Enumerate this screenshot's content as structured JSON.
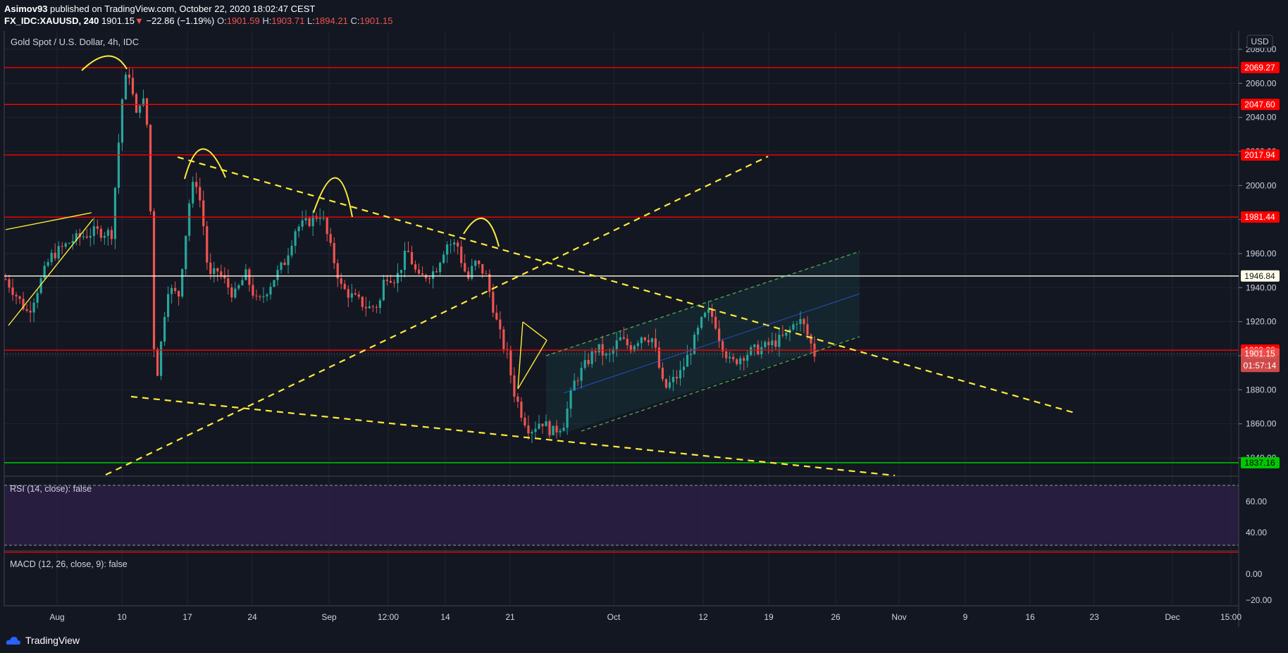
{
  "header": {
    "publisher": "Asimov93",
    "published_text": "published on TradingView.com, October 22, 2020 18:02:47 CEST",
    "symbol": "FX_IDC:XAUUSD, 240",
    "last": "1901.15",
    "change_arrow": "▼",
    "change": "−22.86 (−1.19%)",
    "o_label": "O:",
    "o_value": "1901.59",
    "h_label": "H:",
    "h_value": "1903.71",
    "l_label": "L:",
    "l_value": "1894.21",
    "c_label": "C:",
    "c_value": "1901.15"
  },
  "footer": {
    "brand": "TradingView"
  },
  "colors": {
    "background": "#131722",
    "up": "#26a69a",
    "down": "#ef5350",
    "resistance": "#ff0000",
    "support": "#00c800",
    "pivot": "#fffde7",
    "trendline": "#ffeb3b",
    "channel": "#4caf50",
    "rsi_band": "#2a1f44"
  },
  "chart_data": {
    "type": "candlestick",
    "title": "Gold Spot / U.S. Dollar, 4h, IDC",
    "currency": "USD",
    "ylim": [
      1836,
      2088
    ],
    "y_ticks": [
      "2080.00",
      "2060.00",
      "2040.00",
      "2020.00",
      "2000.00",
      "1980.00",
      "1960.00",
      "1940.00",
      "1920.00",
      "1900.00",
      "1880.00",
      "1860.00",
      "1840.00"
    ],
    "x_ticks": [
      "Aug",
      "10",
      "17",
      "24",
      "Sep",
      "12:00",
      "14",
      "21",
      "Oct",
      "12",
      "19",
      "26",
      "Nov",
      "9",
      "16",
      "23",
      "Dec",
      "15:00"
    ],
    "series_path": [
      [
        0,
        1945
      ],
      [
        2,
        1925
      ],
      [
        4,
        1958
      ],
      [
        6,
        1968
      ],
      [
        8,
        1973
      ],
      [
        9.5,
        1972
      ],
      [
        10,
        2015
      ],
      [
        10.5,
        2055
      ],
      [
        11,
        2069
      ],
      [
        11.7,
        2040
      ],
      [
        12.2,
        2055
      ],
      [
        12.8,
        2030
      ],
      [
        13.4,
        1880
      ],
      [
        13.8,
        1900
      ],
      [
        14.5,
        1940
      ],
      [
        15.5,
        1935
      ],
      [
        16.5,
        1992
      ],
      [
        17,
        2005
      ],
      [
        17.6,
        1985
      ],
      [
        18.2,
        1945
      ],
      [
        19,
        1950
      ],
      [
        20.5,
        1935
      ],
      [
        21.5,
        1948
      ],
      [
        22.6,
        1930
      ],
      [
        24,
        1945
      ],
      [
        25,
        1955
      ],
      [
        26,
        1975
      ],
      [
        27,
        1978
      ],
      [
        28.3,
        1984
      ],
      [
        29,
        1966
      ],
      [
        30.1,
        1940
      ],
      [
        31,
        1935
      ],
      [
        32.5,
        1928
      ],
      [
        33.5,
        1930
      ],
      [
        34,
        1948
      ],
      [
        35,
        1945
      ],
      [
        36,
        1962
      ],
      [
        37,
        1945
      ],
      [
        38.5,
        1950
      ],
      [
        39.5,
        1966
      ],
      [
        40.5,
        1965
      ],
      [
        41,
        1952
      ],
      [
        41.5,
        1945
      ],
      [
        42,
        1955
      ],
      [
        43,
        1948
      ],
      [
        44,
        1920
      ],
      [
        44.5,
        1908
      ],
      [
        45,
        1900
      ],
      [
        45.5,
        1880
      ],
      [
        46.3,
        1865
      ],
      [
        47,
        1856
      ],
      [
        48,
        1862
      ],
      [
        49,
        1855
      ],
      [
        50,
        1860
      ],
      [
        51,
        1885
      ],
      [
        52,
        1895
      ],
      [
        53,
        1905
      ],
      [
        54,
        1898
      ],
      [
        55,
        1910
      ],
      [
        56,
        1905
      ],
      [
        57,
        1912
      ],
      [
        58,
        1910
      ],
      [
        58.5,
        1895
      ],
      [
        59,
        1880
      ],
      [
        60.5,
        1890
      ],
      [
        61.5,
        1905
      ],
      [
        62.5,
        1922
      ],
      [
        63,
        1925
      ],
      [
        63.5,
        1922
      ],
      [
        64,
        1910
      ],
      [
        65,
        1895
      ],
      [
        66,
        1900
      ],
      [
        67,
        1903
      ],
      [
        68,
        1905
      ],
      [
        69,
        1908
      ],
      [
        70,
        1912
      ],
      [
        71,
        1922
      ],
      [
        71.5,
        1918
      ],
      [
        72,
        1910
      ],
      [
        72.5,
        1901
      ]
    ],
    "horizontal_levels": [
      {
        "price": 2069.27,
        "label": "2069.27",
        "kind": "resistance"
      },
      {
        "price": 2047.6,
        "label": "2047.60",
        "kind": "resistance"
      },
      {
        "price": 2017.94,
        "label": "2017.94",
        "kind": "resistance"
      },
      {
        "price": 1981.44,
        "label": "1981.44",
        "kind": "resistance"
      },
      {
        "price": 1946.84,
        "label": "1946.84",
        "kind": "pivot"
      },
      {
        "price": 1903.3,
        "label": "1903.30",
        "kind": "resistance"
      },
      {
        "price": 1837.16,
        "label": "1837.16",
        "kind": "support"
      }
    ],
    "last_price": {
      "price": 1901.15,
      "label": "1901.15",
      "countdown": "01:57:14"
    },
    "indicators": [
      {
        "name": "RSI",
        "title": "RSI (14, close): false",
        "ylim": [
          22,
          78
        ],
        "ticks": [
          "60.00",
          "40.00"
        ],
        "band": [
          30,
          70
        ]
      },
      {
        "name": "MACD",
        "title": "MACD (12, 26, close, 9): false",
        "ylim": [
          -30,
          20
        ],
        "ticks": [
          "0.00",
          "−20.00"
        ]
      }
    ]
  }
}
